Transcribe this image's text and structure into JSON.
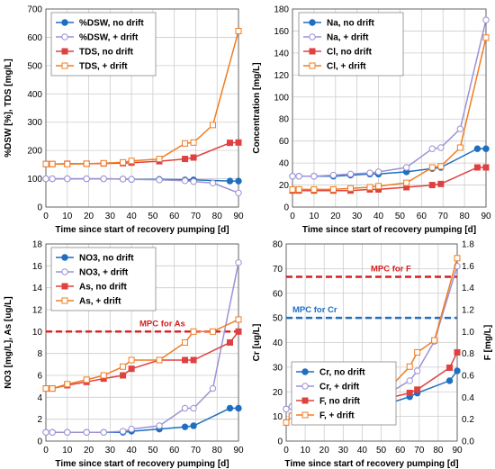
{
  "chart_data": [
    {
      "type": "line",
      "title": "",
      "xlabel": "Time since start of recovery pumping  [d]",
      "ylabel": "%DSW  [%], TDS  [mg/L]",
      "xlim": [
        0,
        90
      ],
      "ylim": [
        0,
        700
      ],
      "xticks": [
        0,
        10,
        20,
        30,
        40,
        50,
        60,
        70,
        80,
        90
      ],
      "yticks": [
        0,
        100,
        200,
        300,
        400,
        500,
        600,
        700
      ],
      "grid": true,
      "legend": "top-left",
      "annotations": [],
      "series": [
        {
          "name": "%DSW, no drift",
          "color": "#1f6fc0",
          "marker": "circle",
          "filled": true,
          "x": [
            0,
            3,
            10,
            19,
            27,
            36,
            40,
            53,
            65,
            69,
            86,
            90
          ],
          "y": [
            100,
            100,
            100,
            100,
            100,
            99,
            98,
            98,
            96,
            96,
            92,
            92
          ]
        },
        {
          "name": "%DSW, + drift",
          "color": "#9c92d6",
          "marker": "circle",
          "filled": false,
          "x": [
            0,
            3,
            10,
            19,
            27,
            36,
            40,
            53,
            65,
            69,
            78,
            90
          ],
          "y": [
            100,
            100,
            100,
            100,
            100,
            99,
            98,
            96,
            93,
            90,
            85,
            50
          ]
        },
        {
          "name": "TDS, no drift",
          "color": "#e04040",
          "marker": "square",
          "filled": true,
          "x": [
            0,
            3,
            10,
            19,
            27,
            36,
            40,
            53,
            65,
            69,
            86,
            90
          ],
          "y": [
            152,
            152,
            153,
            153,
            154,
            155,
            157,
            162,
            170,
            175,
            227,
            228
          ]
        },
        {
          "name": "TDS, + drift",
          "color": "#f07d20",
          "marker": "square",
          "filled": false,
          "x": [
            0,
            3,
            10,
            19,
            27,
            36,
            40,
            53,
            65,
            69,
            78,
            90
          ],
          "y": [
            152,
            152,
            152,
            153,
            155,
            158,
            163,
            170,
            225,
            228,
            290,
            622
          ]
        }
      ]
    },
    {
      "type": "line",
      "title": "",
      "xlabel": "Time since start of recovery pumping  [d]",
      "ylabel": "Concentration  [mg/L]",
      "xlim": [
        0,
        90
      ],
      "ylim": [
        0,
        180
      ],
      "xticks": [
        0,
        10,
        20,
        30,
        40,
        50,
        60,
        70,
        80,
        90
      ],
      "yticks": [
        0,
        20,
        40,
        60,
        80,
        100,
        120,
        140,
        160,
        180
      ],
      "grid": true,
      "legend": "top-left",
      "annotations": [],
      "series": [
        {
          "name": "Na, no drift",
          "color": "#1f6fc0",
          "marker": "circle",
          "filled": true,
          "x": [
            0,
            3,
            10,
            19,
            27,
            36,
            40,
            53,
            65,
            69,
            86,
            90
          ],
          "y": [
            28,
            28,
            28,
            28,
            29,
            30,
            30,
            32,
            35,
            36,
            53,
            53
          ]
        },
        {
          "name": "Na, + drift",
          "color": "#9c92d6",
          "marker": "circle",
          "filled": false,
          "x": [
            0,
            3,
            10,
            19,
            27,
            36,
            40,
            53,
            65,
            69,
            78,
            90
          ],
          "y": [
            28,
            28,
            28,
            29,
            30,
            31,
            32,
            36,
            53,
            54,
            71,
            170
          ]
        },
        {
          "name": "Cl, no drift",
          "color": "#e04040",
          "marker": "square",
          "filled": true,
          "x": [
            0,
            3,
            10,
            19,
            27,
            36,
            40,
            53,
            65,
            69,
            86,
            90
          ],
          "y": [
            15,
            15,
            15,
            15,
            15,
            16,
            16,
            18,
            20,
            21,
            36,
            36
          ]
        },
        {
          "name": "Cl, + drift",
          "color": "#f07d20",
          "marker": "square",
          "filled": false,
          "x": [
            0,
            3,
            10,
            19,
            27,
            36,
            40,
            53,
            65,
            69,
            78,
            90
          ],
          "y": [
            16,
            16,
            16,
            16,
            17,
            18,
            19,
            22,
            36,
            37,
            54,
            154
          ]
        }
      ]
    },
    {
      "type": "line",
      "title": "",
      "xlabel": "Time since start of recovery pumping  [d]",
      "ylabel": "NO3  [mg/L],  As  [ug/L]",
      "xlim": [
        0,
        90
      ],
      "ylim": [
        0,
        18
      ],
      "xticks": [
        0,
        10,
        20,
        30,
        40,
        50,
        60,
        70,
        80,
        90
      ],
      "yticks": [
        0,
        2,
        4,
        6,
        8,
        10,
        12,
        14,
        16,
        18
      ],
      "grid": true,
      "legend": "top-left",
      "annotations": [
        {
          "text": "MPC for As",
          "y": 10,
          "color": "#d42020"
        }
      ],
      "series": [
        {
          "name": "NO3, no drift",
          "color": "#1f6fc0",
          "marker": "circle",
          "filled": true,
          "x": [
            0,
            3,
            10,
            19,
            27,
            36,
            40,
            53,
            65,
            69,
            86,
            90
          ],
          "y": [
            0.8,
            0.8,
            0.8,
            0.8,
            0.8,
            0.8,
            0.9,
            1.1,
            1.3,
            1.4,
            3.0,
            3.0
          ]
        },
        {
          "name": "NO3, + drift",
          "color": "#9c92d6",
          "marker": "circle",
          "filled": false,
          "x": [
            0,
            3,
            10,
            19,
            27,
            36,
            40,
            53,
            65,
            69,
            78,
            90
          ],
          "y": [
            0.8,
            0.8,
            0.8,
            0.8,
            0.8,
            0.9,
            1.1,
            1.4,
            3.0,
            3.0,
            4.8,
            16.3
          ]
        },
        {
          "name": "As, no drift",
          "color": "#e04040",
          "marker": "square",
          "filled": true,
          "x": [
            0,
            3,
            10,
            19,
            27,
            36,
            40,
            53,
            65,
            69,
            86,
            90
          ],
          "y": [
            4.8,
            4.8,
            5.1,
            5.4,
            5.7,
            6.0,
            6.6,
            7.4,
            7.4,
            7.4,
            9.0,
            10.0
          ]
        },
        {
          "name": "As, + drift",
          "color": "#f07d20",
          "marker": "square",
          "filled": false,
          "x": [
            0,
            3,
            10,
            19,
            27,
            36,
            40,
            53,
            65,
            69,
            78,
            90
          ],
          "y": [
            4.8,
            4.8,
            5.2,
            5.6,
            6.0,
            6.8,
            7.4,
            7.4,
            9.0,
            10.0,
            10.0,
            11.1
          ]
        }
      ]
    },
    {
      "type": "line",
      "title": "",
      "xlabel": "Time since start of recovery pumping  [d]",
      "ylabel": "Cr  [ug/L]",
      "y2label": "F  [mg/L]",
      "xlim": [
        0,
        90
      ],
      "ylim": [
        0,
        80
      ],
      "y2lim": [
        0,
        1.8
      ],
      "xticks": [
        0,
        10,
        20,
        30,
        40,
        50,
        60,
        70,
        80,
        90
      ],
      "yticks": [
        0,
        10,
        20,
        30,
        40,
        50,
        60,
        70,
        80
      ],
      "y2ticks": [
        0,
        0.2,
        0.4,
        0.6,
        0.8,
        1.0,
        1.2,
        1.4,
        1.6,
        1.8
      ],
      "grid": true,
      "legend": "bottom-left",
      "annotations": [
        {
          "text": "MPC for F",
          "y2": 1.5,
          "color": "#d42020"
        },
        {
          "text": "MPC for Cr",
          "y": 50,
          "color": "#1f6fc0"
        }
      ],
      "series": [
        {
          "name": "Cr, no drift",
          "color": "#1f6fc0",
          "marker": "circle",
          "filled": true,
          "axis": "left",
          "x": [
            0,
            3,
            10,
            19,
            27,
            36,
            40,
            53,
            65,
            69,
            86,
            90
          ],
          "y": [
            13,
            14,
            14,
            14,
            14,
            14.5,
            14.5,
            15,
            18,
            19.5,
            24.5,
            28.5
          ]
        },
        {
          "name": "Cr, + drift",
          "color": "#9c92d6",
          "marker": "circle",
          "filled": false,
          "axis": "left",
          "x": [
            0,
            3,
            10,
            19,
            27,
            36,
            40,
            53,
            65,
            69,
            78,
            90
          ],
          "y": [
            13,
            14,
            14,
            14,
            14.5,
            15,
            16,
            19,
            24.5,
            28.5,
            40.5,
            71
          ]
        },
        {
          "name": "F, no drift",
          "color": "#e04040",
          "marker": "square",
          "filled": true,
          "axis": "right",
          "x": [
            0,
            3,
            10,
            19,
            27,
            36,
            40,
            53,
            65,
            69,
            86,
            90
          ],
          "y": [
            0.17,
            0.23,
            0.24,
            0.25,
            0.27,
            0.3,
            0.33,
            0.39,
            0.44,
            0.47,
            0.67,
            0.81
          ]
        },
        {
          "name": "F, + drift",
          "color": "#f07d20",
          "marker": "square",
          "filled": false,
          "axis": "right",
          "x": [
            0,
            3,
            10,
            19,
            27,
            36,
            40,
            53,
            65,
            69,
            78,
            90
          ],
          "y": [
            0.17,
            0.23,
            0.24,
            0.26,
            0.3,
            0.36,
            0.39,
            0.46,
            0.68,
            0.81,
            0.92,
            1.67
          ]
        }
      ]
    }
  ]
}
